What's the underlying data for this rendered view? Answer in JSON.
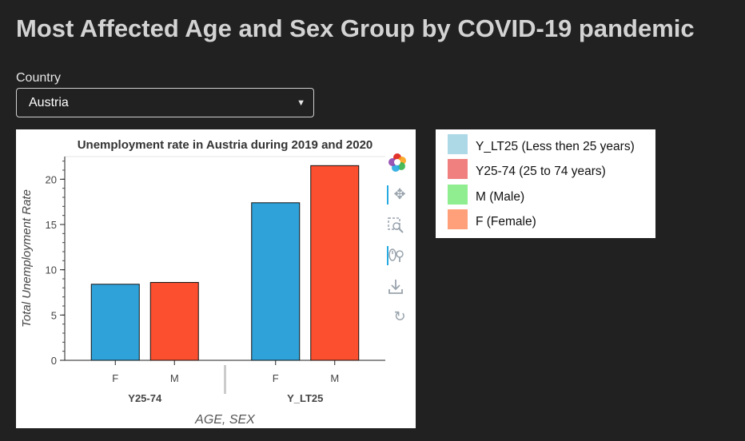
{
  "page": {
    "title": "Most Affected Age and Sex Group by COVID-19 pandemic"
  },
  "country_select": {
    "label": "Country",
    "value": "Austria"
  },
  "toolbar": {
    "icons": [
      "bokeh-logo-icon",
      "pan-icon",
      "box-zoom-icon",
      "wheel-zoom-icon",
      "save-icon",
      "reset-icon"
    ]
  },
  "legend": {
    "items": [
      {
        "label": "Y_LT25 (Less then 25 years)",
        "color": "#add8e6"
      },
      {
        "label": "Y25-74 (25 to 74 years)",
        "color": "#f08080"
      },
      {
        "label": "M (Male)",
        "color": "#90ee90"
      },
      {
        "label": "F (Female)",
        "color": "#ffa07a"
      }
    ]
  },
  "chart_data": {
    "type": "bar",
    "title": "Unemployment rate in Austria during 2019 and 2020",
    "xlabel": "AGE, SEX",
    "ylabel": "Total Unemployment Rate",
    "ylim": [
      0,
      22.5
    ],
    "yticks": [
      0,
      5,
      10,
      15,
      20
    ],
    "groups": [
      {
        "name": "Y25-74",
        "bars": [
          {
            "category": "F",
            "value": 8.4,
            "color": "#30a2da"
          },
          {
            "category": "M",
            "value": 8.6,
            "color": "#fc4f30"
          }
        ]
      },
      {
        "name": "Y_LT25",
        "bars": [
          {
            "category": "F",
            "value": 17.4,
            "color": "#30a2da"
          },
          {
            "category": "M",
            "value": 21.5,
            "color": "#fc4f30"
          }
        ]
      }
    ]
  }
}
